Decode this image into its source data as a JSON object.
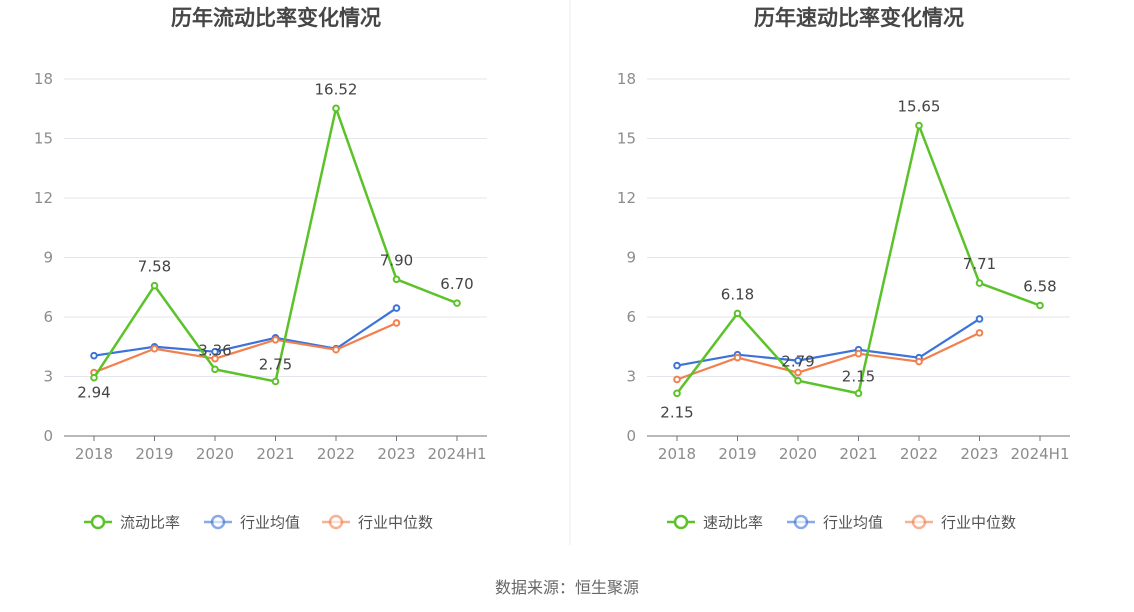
{
  "chart_data": [
    {
      "type": "line",
      "title": "历年流动比率变化情况",
      "categories": [
        "2018",
        "2019",
        "2020",
        "2021",
        "2022",
        "2023",
        "2024H1"
      ],
      "yticks": [
        "0",
        "3",
        "6",
        "9",
        "12",
        "15",
        "18"
      ],
      "ylim": [
        0,
        18
      ],
      "grid": true,
      "legend_position": "bottom",
      "series": [
        {
          "name": "流动比率",
          "color": "#5cc22a",
          "values": [
            2.94,
            7.58,
            3.36,
            2.75,
            16.52,
            7.9,
            6.7
          ],
          "labels": [
            "2.94",
            "7.58",
            "3.36",
            "2.75",
            "16.52",
            "7.90",
            "6.70"
          ]
        },
        {
          "name": "行业均值",
          "color": "#3b73d9",
          "values": [
            4.05,
            4.5,
            4.25,
            4.95,
            4.4,
            6.45,
            null
          ]
        },
        {
          "name": "行业中位数",
          "color": "#f2804f",
          "values": [
            3.2,
            4.4,
            3.9,
            4.85,
            4.35,
            5.7,
            null
          ]
        }
      ]
    },
    {
      "type": "line",
      "title": "历年速动比率变化情况",
      "categories": [
        "2018",
        "2019",
        "2020",
        "2021",
        "2022",
        "2023",
        "2024H1"
      ],
      "yticks": [
        "0",
        "3",
        "6",
        "9",
        "12",
        "15",
        "18"
      ],
      "ylim": [
        0,
        18
      ],
      "grid": true,
      "legend_position": "bottom",
      "series": [
        {
          "name": "速动比率",
          "color": "#5cc22a",
          "values": [
            2.15,
            6.18,
            2.79,
            2.15,
            15.65,
            7.71,
            6.58
          ],
          "labels": [
            "2.15",
            "6.18",
            "2.79",
            "2.15",
            "15.65",
            "7.71",
            "6.58"
          ]
        },
        {
          "name": "行业均值",
          "color": "#3b73d9",
          "values": [
            3.55,
            4.1,
            3.8,
            4.35,
            3.95,
            5.9,
            null
          ]
        },
        {
          "name": "行业中位数",
          "color": "#f2804f",
          "values": [
            2.85,
            3.95,
            3.2,
            4.15,
            3.75,
            5.2,
            null
          ]
        }
      ]
    }
  ],
  "source": "数据来源：恒生聚源"
}
